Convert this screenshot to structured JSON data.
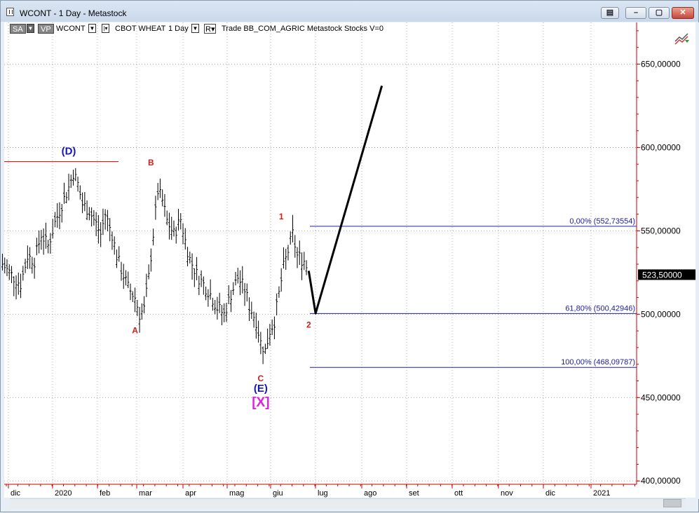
{
  "window": {
    "title": "WCONT - 1 Day - Metastock",
    "buttons": [
      "restore-window",
      "minimize",
      "maximize",
      "close"
    ]
  },
  "toolbar": {
    "sa": "SA",
    "vp": "VP",
    "symbol": "WCONT",
    "instrument": "CBOT WHEAT",
    "period": "1 Day",
    "r": "R",
    "info": "Trade  BB_COM_AGRIC  Metastock  Stocks  V=0"
  },
  "chart_data": {
    "type": "ohlc",
    "y_axis": {
      "ticks": [
        650,
        600,
        550,
        500,
        450,
        400
      ],
      "tick_labels": [
        "650,00000",
        "600,00000",
        "550,00000",
        "500,00000",
        "450,00000",
        "400,00000"
      ],
      "ylim": [
        398,
        675
      ],
      "position": "right"
    },
    "x_axis": {
      "labels": [
        "dic",
        "2020",
        "feb",
        "mar",
        "apr",
        "mag",
        "giu",
        "lug",
        "ago",
        "set",
        "ott",
        "nov",
        "dic",
        "2021"
      ]
    },
    "current_price_label": "523,50000",
    "current_price": 523.5,
    "price_path": [
      [
        -2,
        530
      ],
      [
        3,
        522
      ],
      [
        6,
        518
      ],
      [
        9,
        535
      ],
      [
        12,
        532
      ],
      [
        15,
        548
      ],
      [
        18,
        541
      ],
      [
        21,
        555
      ],
      [
        24,
        566
      ],
      [
        27,
        576
      ],
      [
        29,
        585
      ],
      [
        31,
        578
      ],
      [
        33,
        566
      ],
      [
        36,
        562
      ],
      [
        39,
        554
      ],
      [
        41,
        548
      ],
      [
        43,
        560
      ],
      [
        46,
        548
      ],
      [
        48,
        535
      ],
      [
        50,
        527
      ],
      [
        53,
        516
      ],
      [
        56,
        510
      ],
      [
        58,
        500
      ],
      [
        60,
        503
      ],
      [
        62,
        522
      ],
      [
        64,
        548
      ],
      [
        66,
        574
      ],
      [
        68,
        568
      ],
      [
        70,
        556
      ],
      [
        73,
        548
      ],
      [
        76,
        557
      ],
      [
        78,
        544
      ],
      [
        80,
        533
      ],
      [
        83,
        524
      ],
      [
        86,
        518
      ],
      [
        89,
        512
      ],
      [
        92,
        504
      ],
      [
        95,
        500
      ],
      [
        98,
        512
      ],
      [
        101,
        522
      ],
      [
        104,
        515
      ],
      [
        106,
        505
      ],
      [
        109,
        496
      ],
      [
        111,
        483
      ],
      [
        113,
        478
      ],
      [
        115,
        490
      ],
      [
        117,
        496
      ],
      [
        119,
        512
      ],
      [
        121,
        528
      ],
      [
        123,
        538
      ],
      [
        125,
        548
      ],
      [
        127,
        535
      ],
      [
        130,
        532
      ],
      [
        132,
        526
      ]
    ],
    "forecast_path": [
      [
        132,
        526
      ],
      [
        135,
        500.5
      ],
      [
        164,
        637
      ]
    ],
    "fib_levels": [
      {
        "label": "0,00% (552,73554)",
        "value": 552.73554
      },
      {
        "label": "61,80% (500,42946)",
        "value": 500.42946
      },
      {
        "label": "100,00% (468,09787)",
        "value": 468.09787
      }
    ],
    "horizontal_line": {
      "value": 591.5,
      "color": "#cc0000"
    },
    "wave_labels": [
      {
        "text": "(D)",
        "color": "#1515c8",
        "x": 27,
        "y": 591.5,
        "pos": "above"
      },
      {
        "text": "B",
        "color": "#cc2020",
        "x": 63,
        "y": 585,
        "pos": "above"
      },
      {
        "text": "A",
        "color": "#cc2020",
        "x": 56,
        "y": 497,
        "pos": "below"
      },
      {
        "text": "1",
        "color": "#cc2020",
        "x": 120,
        "y": 552.7,
        "pos": "above"
      },
      {
        "text": "2",
        "color": "#cc2020",
        "x": 132,
        "y": 500.4,
        "pos": "below"
      },
      {
        "text": "C",
        "color": "#cc2020",
        "x": 111,
        "y": 468.1,
        "pos": "below"
      },
      {
        "text": "(E)",
        "color": "#1515c8",
        "x": 111,
        "y": 468.1,
        "pos": "below2"
      },
      {
        "text": "[X]",
        "color": "#e020e0",
        "x": 111,
        "y": 468.1,
        "pos": "below3"
      }
    ],
    "grid": true,
    "colors": {
      "bars": "#000000",
      "fib": "#2020a0",
      "axis": "#cc0000"
    }
  }
}
